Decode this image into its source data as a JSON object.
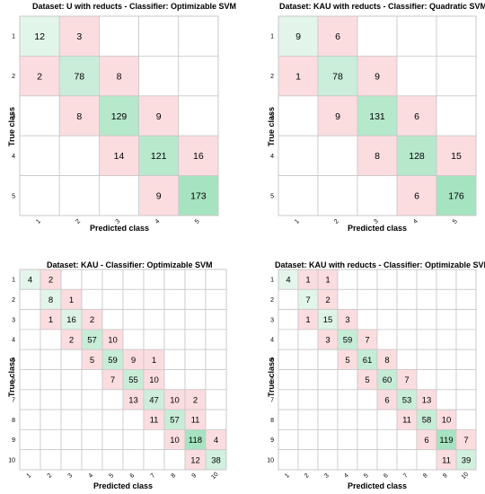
{
  "colors": {
    "diag_low": "#e6f6ec",
    "diag_high": "#a6e3c0",
    "off": "#fbdde0",
    "grid": "#c8c8c8",
    "text": "#000000"
  },
  "chart_data": [
    {
      "type": "heatmap",
      "title": "Dataset: U with reducts - Classifier: Optimizable SVM",
      "xlabel": "Predicted class",
      "ylabel": "True class",
      "classes": [
        "1",
        "2",
        "3",
        "4",
        "5"
      ],
      "matrix": [
        [
          12,
          3,
          0,
          0,
          0
        ],
        [
          2,
          78,
          8,
          0,
          0
        ],
        [
          0,
          8,
          129,
          9,
          0
        ],
        [
          0,
          0,
          14,
          121,
          16
        ],
        [
          0,
          0,
          0,
          9,
          173
        ]
      ]
    },
    {
      "type": "heatmap",
      "title": "Dataset: KAU with reducts - Classifier: Quadratic SVM)",
      "xlabel": "Predicted class",
      "ylabel": "True class",
      "classes": [
        "1",
        "2",
        "3",
        "4",
        "5"
      ],
      "matrix": [
        [
          9,
          6,
          0,
          0,
          0
        ],
        [
          1,
          78,
          9,
          0,
          0
        ],
        [
          0,
          9,
          131,
          6,
          0
        ],
        [
          0,
          0,
          8,
          128,
          15
        ],
        [
          0,
          0,
          0,
          6,
          176
        ]
      ]
    },
    {
      "type": "heatmap",
      "title": "Dataset: KAU - Classifier: Optimizable SVM",
      "xlabel": "Predicted class",
      "ylabel": "True class",
      "classes": [
        "1",
        "2",
        "3",
        "4",
        "5",
        "6",
        "7",
        "8",
        "9",
        "10"
      ],
      "matrix": [
        [
          4,
          2,
          0,
          0,
          0,
          0,
          0,
          0,
          0,
          0
        ],
        [
          0,
          8,
          1,
          0,
          0,
          0,
          0,
          0,
          0,
          0
        ],
        [
          0,
          1,
          16,
          2,
          0,
          0,
          0,
          0,
          0,
          0
        ],
        [
          0,
          0,
          2,
          57,
          10,
          0,
          0,
          0,
          0,
          0
        ],
        [
          0,
          0,
          0,
          5,
          59,
          9,
          1,
          0,
          0,
          0
        ],
        [
          0,
          0,
          0,
          0,
          7,
          55,
          10,
          0,
          0,
          0
        ],
        [
          0,
          0,
          0,
          0,
          0,
          13,
          47,
          10,
          2,
          0
        ],
        [
          0,
          0,
          0,
          0,
          0,
          0,
          11,
          57,
          11,
          0
        ],
        [
          0,
          0,
          0,
          0,
          0,
          0,
          0,
          10,
          118,
          4
        ],
        [
          0,
          0,
          0,
          0,
          0,
          0,
          0,
          0,
          12,
          38
        ]
      ]
    },
    {
      "type": "heatmap",
      "title": "Dataset: KAU with reducts - Classifier: Optimizable SVM",
      "xlabel": "Predicted class",
      "ylabel": "True class",
      "classes": [
        "1",
        "2",
        "3",
        "4",
        "5",
        "6",
        "7",
        "8",
        "9",
        "10"
      ],
      "matrix": [
        [
          4,
          1,
          1,
          0,
          0,
          0,
          0,
          0,
          0,
          0
        ],
        [
          0,
          7,
          2,
          0,
          0,
          0,
          0,
          0,
          0,
          0
        ],
        [
          0,
          1,
          15,
          3,
          0,
          0,
          0,
          0,
          0,
          0
        ],
        [
          0,
          0,
          3,
          59,
          7,
          0,
          0,
          0,
          0,
          0
        ],
        [
          0,
          0,
          0,
          5,
          61,
          8,
          0,
          0,
          0,
          0
        ],
        [
          0,
          0,
          0,
          0,
          5,
          60,
          7,
          0,
          0,
          0
        ],
        [
          0,
          0,
          0,
          0,
          0,
          6,
          53,
          13,
          0,
          0
        ],
        [
          0,
          0,
          0,
          0,
          0,
          0,
          11,
          58,
          10,
          0
        ],
        [
          0,
          0,
          0,
          0,
          0,
          0,
          0,
          6,
          119,
          7
        ],
        [
          0,
          0,
          0,
          0,
          0,
          0,
          0,
          0,
          11,
          39
        ]
      ]
    }
  ]
}
